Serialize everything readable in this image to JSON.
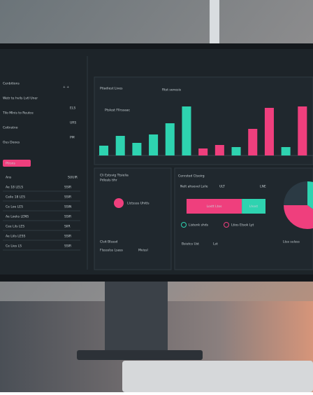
{
  "sidebar": {
    "title": "Cenbitions",
    "title_tag": "+ +",
    "items": [
      {
        "label": "Wetr te hvils Lvtl Uner",
        "value": "ELS"
      },
      {
        "label": "Tilo Mlnis to Reutce",
        "value": "URS"
      },
      {
        "label": "Coitnstno",
        "value": "PM"
      },
      {
        "label": "Ous Deoes",
        "value": ""
      }
    ],
    "button": "Ptrsns",
    "rows_header": {
      "label": "Ans",
      "value": "SUUIR"
    },
    "rows": [
      {
        "label": "Ae 18 LELS",
        "value": "SSIR"
      },
      {
        "label": "Ceile 18 LES",
        "value": "SSIR"
      },
      {
        "label": "Ce Loe LES",
        "value": "SSIN"
      },
      {
        "label": "Ae Loeks LENS",
        "value": "SSIR"
      },
      {
        "label": "Cee Lils LES",
        "value": "SIIR"
      },
      {
        "label": "Ae Liils LESS",
        "value": "SSIR"
      },
      {
        "label": "Ce Lies LS",
        "value": "SSIR"
      }
    ]
  },
  "top_panel": {
    "title": "Ptiadiest Lives",
    "menu": "Rtst senesis",
    "subtitle": "Ptslest Fllrssaac"
  },
  "chart_data": {
    "type": "bar",
    "categories": [
      null,
      null,
      null,
      null,
      null,
      null,
      null,
      null,
      null,
      null,
      null,
      null,
      null
    ],
    "values": [
      14,
      28,
      18,
      30,
      46,
      70,
      10,
      15,
      12,
      38,
      68,
      12,
      70
    ],
    "colors": [
      "#2ed3b0",
      "#2ed3b0",
      "#2ed3b0",
      "#2ed3b0",
      "#2ed3b0",
      "#2ed3b0",
      "#ef3f7d",
      "#ef3f7d",
      "#2ed3b0",
      "#ef3f7d",
      "#ef3f7d",
      "#2ed3b0",
      "#ef3f7d"
    ]
  },
  "left_panel": {
    "title": "Cli Estsvig Ttsielia",
    "subtitle": "Pdlosls tihr",
    "tag": "Llctssss Uhitls",
    "footer_title": "Clsit Blsssd",
    "footer_note": "Flsssslss Lsass",
    "footer_value": "Mvissl"
  },
  "right_panel": {
    "title": "Cenrsted Ctsoirg",
    "legend": [
      "Nelt ahsevel Lsile",
      "ULT",
      "LNE"
    ],
    "stacked": {
      "values": [
        70,
        30
      ],
      "colors": [
        "#ef3f7d",
        "#2ed3b0"
      ],
      "labels": [
        "Lostt Ltos",
        "Lhost"
      ]
    },
    "pie": {
      "values": [
        35,
        40,
        25
      ],
      "colors": [
        "#2ed3b0",
        "#ef3f7d",
        "#2b3a44"
      ]
    },
    "notes": [
      "Listenk shds",
      "Ltios Etsok Lyt"
    ],
    "footer": [
      "Bsiutcs Ust",
      "Lst",
      "Ltss sulsss"
    ]
  }
}
